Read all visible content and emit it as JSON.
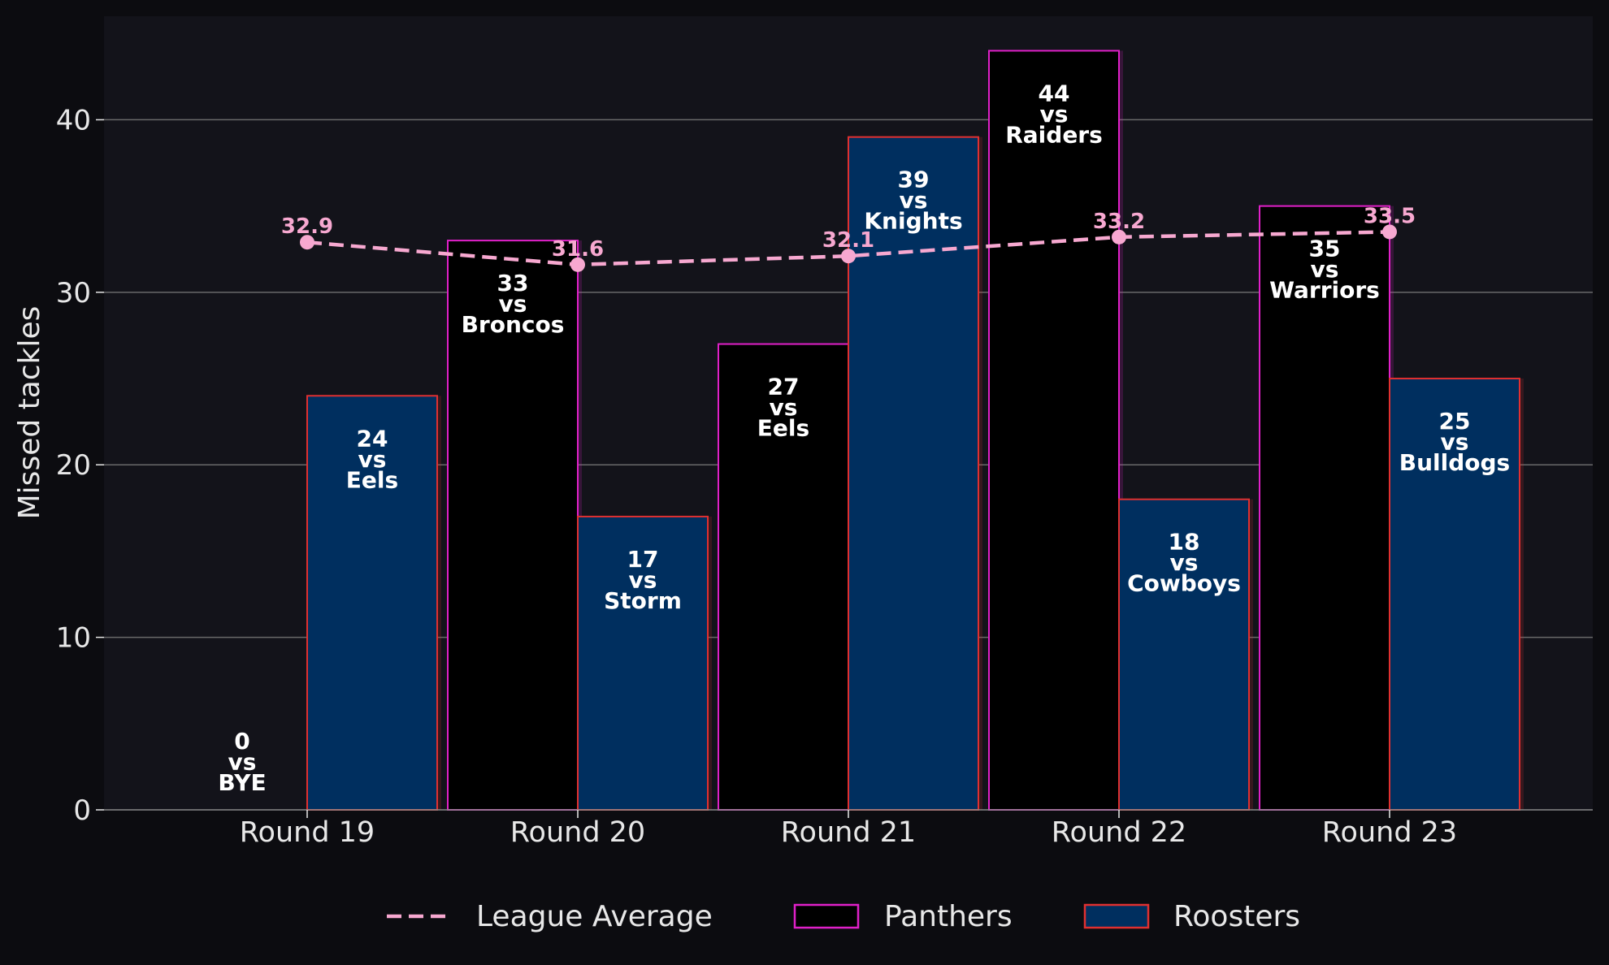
{
  "chart_data": {
    "type": "bar",
    "title": "",
    "xlabel": "",
    "ylabel": "Missed tackles",
    "categories": [
      "Round 19",
      "Round 20",
      "Round 21",
      "Round 22",
      "Round 23"
    ],
    "ylim": [
      0,
      46
    ],
    "yticks": [
      0,
      10,
      20,
      30,
      40
    ],
    "grid": "horizontal",
    "legend_position": "bottom-center",
    "series": [
      {
        "name": "Panthers",
        "kind": "bar",
        "values": [
          0,
          33,
          27,
          44,
          35
        ],
        "opponents": [
          "BYE",
          "Broncos",
          "Eels",
          "Raiders",
          "Warriors"
        ],
        "fill": "#000000",
        "edge": "#e020c8"
      },
      {
        "name": "Roosters",
        "kind": "bar",
        "values": [
          24,
          17,
          39,
          18,
          25
        ],
        "opponents": [
          "Eels",
          "Storm",
          "Knights",
          "Cowboys",
          "Bulldogs"
        ],
        "fill": "#002f5f",
        "edge": "#e03030"
      },
      {
        "name": "League Average",
        "kind": "line",
        "style": "dashed",
        "values": [
          32.9,
          31.6,
          32.1,
          33.2,
          33.5
        ],
        "labels": [
          "32.9",
          "31.6",
          "32.1",
          "33.2",
          "33.5"
        ],
        "color": "#f7a8d0"
      }
    ],
    "vs_word": "vs",
    "colors": {
      "background": "#0c0c10",
      "plot_background": "#13131a",
      "grid": "#6a6a6a",
      "text": "#e8e8e8",
      "bar_label": "#ffffff"
    }
  }
}
